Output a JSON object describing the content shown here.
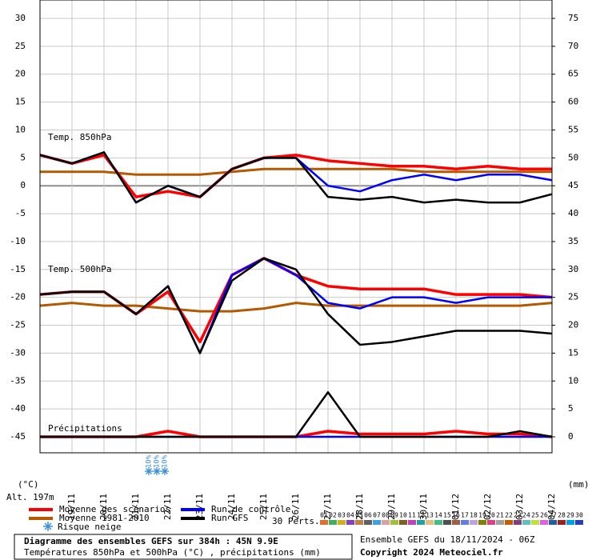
{
  "chart_data": {
    "type": "line",
    "title": "Diagramme des ensembles GEFS sur 384h : 45N 9.9E",
    "subtitle": "Températures 850hPa et 500hPa (°C) , précipitations (mm)",
    "run_info": "Ensemble GEFS du 18/11/2024 - 06Z",
    "copyright": "Copyright 2024 Meteociel.fr",
    "y_label": "(°C)",
    "y2_label": "(mm)",
    "altitude": "Alt. 197m",
    "annotations": {
      "temp850": "Temp. 850hPa",
      "temp500": "Temp. 500hPa",
      "precip": "Précipitations"
    },
    "snow_legend": "Risque neige",
    "snow_risk": {
      "categories_index": [
        3.4,
        3.65,
        3.9
      ],
      "labels": [
        "10%",
        "10%",
        "10%"
      ]
    },
    "categories": [
      null,
      "19/11",
      "20/11",
      "21/11",
      "22/11",
      "23/11",
      "24/11",
      "25/11",
      "26/11",
      "27/11",
      "28/11",
      "29/11",
      "30/11",
      "01/12",
      "02/12",
      "03/12",
      "04/12"
    ],
    "ylim": [
      -45,
      30
    ],
    "yticks": [
      30,
      25,
      20,
      15,
      10,
      5,
      0,
      -5,
      -10,
      -15,
      -20,
      -25,
      -30,
      -35,
      -40,
      -45
    ],
    "y2lim": [
      0,
      75
    ],
    "y2ticks": [
      75,
      70,
      65,
      60,
      55,
      50,
      45,
      40,
      35,
      30,
      25,
      20,
      15,
      10,
      5,
      0
    ],
    "grid": true,
    "series": [
      {
        "name": "Moyenne des scénarios",
        "color": "#ff0000",
        "temp850": [
          5.5,
          4,
          5.5,
          -2,
          -1,
          -2,
          3,
          5,
          5.5,
          4.5,
          4,
          3.5,
          3.5,
          3,
          3.5,
          3,
          3
        ],
        "temp500": [
          -19.5,
          -19,
          -19,
          -23,
          -19,
          -28,
          -16,
          -13,
          -16,
          -18,
          -18.5,
          -18.5,
          -18.5,
          -19.5,
          -19.5,
          -19.5,
          -20
        ],
        "precip": [
          0,
          0,
          0,
          0,
          1,
          0,
          0,
          0,
          0,
          1,
          0.5,
          0.5,
          0.5,
          1,
          0.5,
          0.5,
          0
        ]
      },
      {
        "name": "Moyenne 1981-2010",
        "color": "#b35a00",
        "temp850": [
          2.5,
          2.5,
          2.5,
          2,
          2,
          2,
          2.5,
          3,
          3,
          3,
          3,
          3,
          2.5,
          2.5,
          2.5,
          2.5,
          2.5
        ],
        "temp500": [
          -21.5,
          -21,
          -21.5,
          -21.5,
          -22,
          -22.5,
          -22.5,
          -22,
          -21,
          -21.5,
          -21.5,
          -21.5,
          -21.5,
          -21.5,
          -21.5,
          -21.5,
          -21
        ]
      },
      {
        "name": "Run de contrôle",
        "color": "#0000ff",
        "temp850": [
          5.5,
          4,
          6,
          -3,
          0,
          -2,
          3,
          5,
          5,
          0,
          -1,
          1,
          2,
          1,
          2,
          2,
          1
        ],
        "temp500": [
          -19.5,
          -19,
          -19,
          -23,
          -18,
          -30,
          -16,
          -13,
          -16,
          -21,
          -22,
          -20,
          -20,
          -21,
          -20,
          -20,
          -20
        ],
        "precip": [
          0,
          0,
          0,
          0,
          0,
          0,
          0,
          0,
          0,
          0,
          0,
          0,
          0,
          0,
          0,
          0,
          0
        ]
      },
      {
        "name": "Run GFS",
        "color": "#000000",
        "temp850": [
          5.5,
          4,
          6,
          -3,
          0,
          -2,
          3,
          5,
          5,
          -2,
          -2.5,
          -2,
          -3,
          -2.5,
          -3,
          -3,
          -1.5
        ],
        "temp500": [
          -19.5,
          -19,
          -19,
          -23,
          -18,
          -30,
          -17,
          -13,
          -15,
          -23,
          -28.5,
          -28,
          -27,
          -26,
          -26,
          -26,
          -26.5
        ],
        "precip": [
          0,
          0,
          0,
          0,
          0,
          0,
          0,
          0,
          0,
          8,
          0,
          0,
          0,
          0,
          0,
          1,
          0
        ]
      }
    ],
    "perturbations": {
      "label": "30 Perts.",
      "members": [
        {
          "name": "01",
          "color": "#e07030"
        },
        {
          "name": "02",
          "color": "#40b060"
        },
        {
          "name": "03",
          "color": "#d0b020"
        },
        {
          "name": "04",
          "color": "#8040c0"
        },
        {
          "name": "05",
          "color": "#c08040"
        },
        {
          "name": "06",
          "color": "#606060"
        },
        {
          "name": "07",
          "color": "#40a0e0"
        },
        {
          "name": "08",
          "color": "#e0a0a0"
        },
        {
          "name": "09",
          "color": "#a0c040"
        },
        {
          "name": "10",
          "color": "#806020"
        },
        {
          "name": "11",
          "color": "#c040c0"
        },
        {
          "name": "12",
          "color": "#20a0a0"
        },
        {
          "name": "13",
          "color": "#e0c080"
        },
        {
          "name": "14",
          "color": "#40c080"
        },
        {
          "name": "15",
          "color": "#505050"
        },
        {
          "name": "16",
          "color": "#a06040"
        },
        {
          "name": "17",
          "color": "#6080e0"
        },
        {
          "name": "18",
          "color": "#c0a0e0"
        },
        {
          "name": "19",
          "color": "#808000"
        },
        {
          "name": "20",
          "color": "#e04080"
        },
        {
          "name": "21",
          "color": "#a0a0a0"
        },
        {
          "name": "22",
          "color": "#c06000"
        },
        {
          "name": "23",
          "color": "#804080"
        },
        {
          "name": "24",
          "color": "#60c0c0"
        },
        {
          "name": "25",
          "color": "#c0e040"
        },
        {
          "name": "26",
          "color": "#e060e0"
        },
        {
          "name": "27",
          "color": "#2060a0"
        },
        {
          "name": "28",
          "color": "#a02020"
        },
        {
          "name": "29",
          "color": "#00a0e0"
        },
        {
          "name": "30",
          "color": "#2040c0"
        }
      ]
    }
  }
}
